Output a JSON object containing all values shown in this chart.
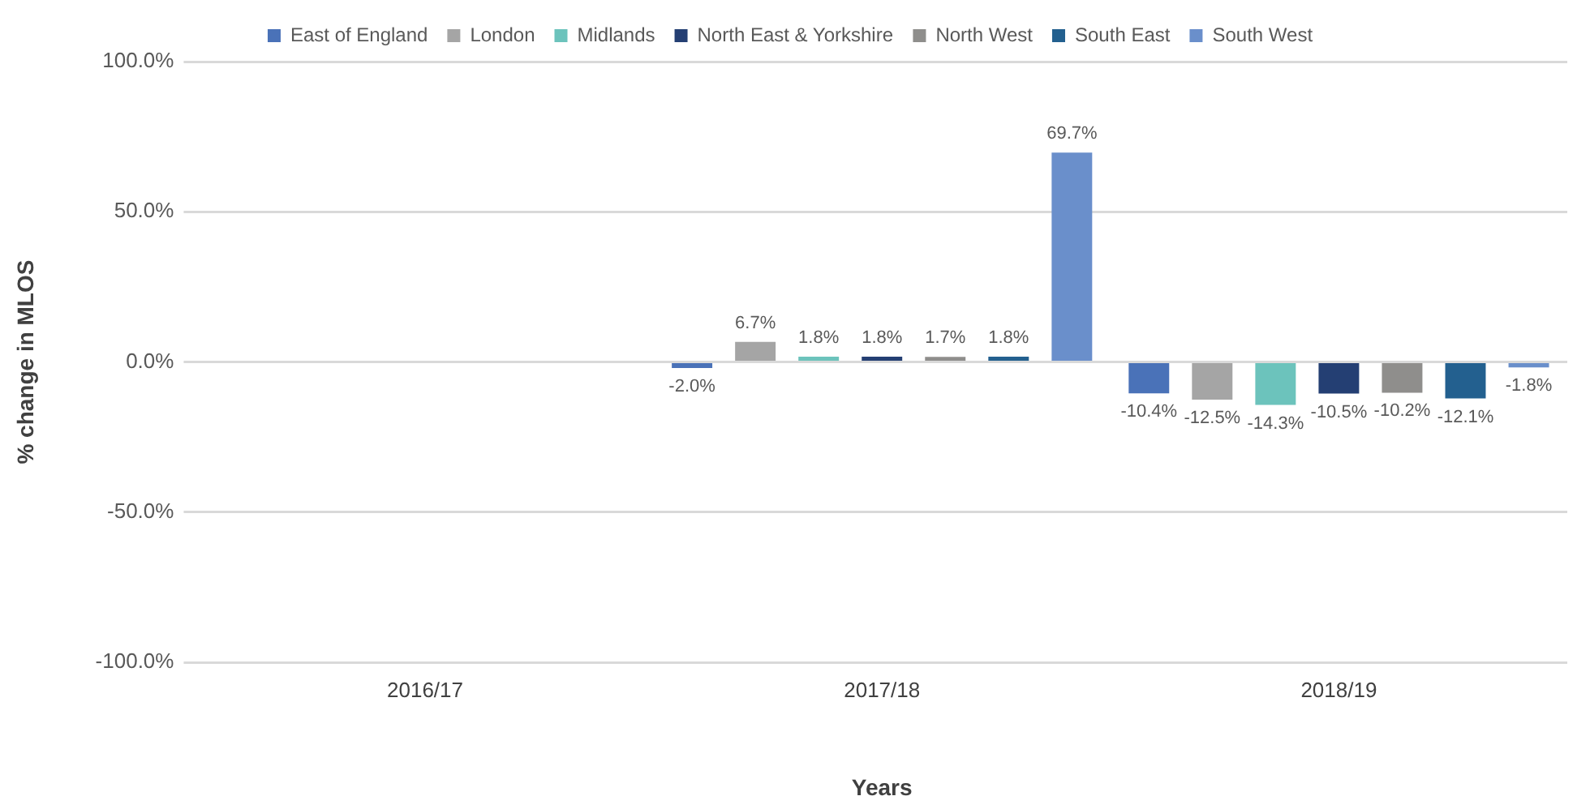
{
  "chart_data": {
    "type": "bar",
    "xlabel": "Years",
    "ylabel": "% change in MLOS",
    "categories": [
      "2016/17",
      "2017/18",
      "2018/19"
    ],
    "series": [
      {
        "name": "East of England",
        "color": "#4a72b8",
        "values": [
          null,
          -2.0,
          -10.4
        ],
        "value_labels": [
          null,
          "-2.0%",
          "-10.4%"
        ]
      },
      {
        "name": "London",
        "color": "#a5a5a5",
        "values": [
          null,
          6.7,
          -12.5
        ],
        "value_labels": [
          null,
          "6.7%",
          "-12.5%"
        ]
      },
      {
        "name": "Midlands",
        "color": "#6cc3bc",
        "values": [
          null,
          1.8,
          -14.3
        ],
        "value_labels": [
          null,
          "1.8%",
          "-14.3%"
        ]
      },
      {
        "name": "North East & Yorkshire",
        "color": "#243f73",
        "values": [
          null,
          1.8,
          -10.5
        ],
        "value_labels": [
          null,
          "1.8%",
          "-10.5%"
        ]
      },
      {
        "name": "North West",
        "color": "#8f8e8c",
        "values": [
          null,
          1.7,
          -10.2
        ],
        "value_labels": [
          null,
          "1.7%",
          "-10.2%"
        ]
      },
      {
        "name": "South East",
        "color": "#23608f",
        "values": [
          null,
          1.8,
          -12.1
        ],
        "value_labels": [
          null,
          "1.8%",
          "-12.1%"
        ]
      },
      {
        "name": "South West",
        "color": "#6a8fcb",
        "values": [
          null,
          69.7,
          -1.8
        ],
        "value_labels": [
          null,
          "69.7%",
          "-1.8%"
        ]
      }
    ],
    "ylim": [
      -100,
      100
    ],
    "yticks": [
      {
        "value": -100,
        "label": "-100.0%"
      },
      {
        "value": -50,
        "label": "-50.0%"
      },
      {
        "value": 0,
        "label": "0.0%"
      },
      {
        "value": 50,
        "label": "50.0%"
      },
      {
        "value": 100,
        "label": "100.0%"
      }
    ],
    "grid": "y",
    "legend": "top"
  }
}
